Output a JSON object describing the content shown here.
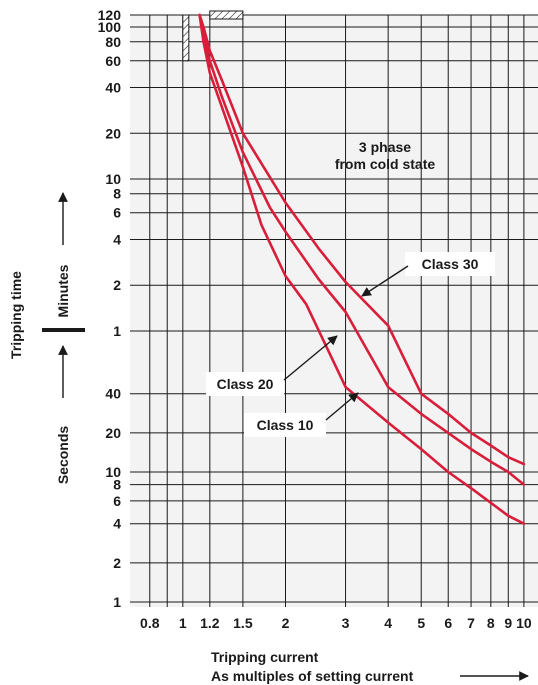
{
  "chart_data": {
    "type": "line",
    "x_scale": "log",
    "x_label": "Tripping current",
    "x_label_sub": "As multiples of setting current",
    "xlim": [
      0.7,
      11
    ],
    "x_ticks": [
      "0.8",
      "1",
      "1.2",
      "1.5",
      "2",
      "3",
      "4",
      "5",
      "6",
      "7",
      "8",
      "9",
      "10"
    ],
    "y_label": "Tripping time",
    "y_unit_upper": "Minutes",
    "y_unit_lower": "Seconds",
    "y_ticks_minutes": [
      "120",
      "100",
      "80",
      "60",
      "40",
      "20",
      "10",
      "8",
      "6",
      "4",
      "2",
      "1"
    ],
    "y_ticks_seconds": [
      "40",
      "20",
      "10",
      "8",
      "6",
      "4",
      "2",
      "1"
    ],
    "annotation": [
      "3 phase",
      "from cold state"
    ],
    "series": [
      {
        "name": "Class 10",
        "points": [
          [
            1.12,
            "120 min"
          ],
          [
            1.15,
            "80 min"
          ],
          [
            1.2,
            "50 min"
          ],
          [
            1.3,
            "30 min"
          ],
          [
            1.5,
            "12 min"
          ],
          [
            1.7,
            "5 min"
          ],
          [
            2.0,
            "2.3 min"
          ],
          [
            2.3,
            "90 s"
          ],
          [
            3.0,
            "45 s"
          ],
          [
            4.0,
            "24 s"
          ],
          [
            5.0,
            "15 s"
          ],
          [
            6.0,
            "10 s"
          ],
          [
            7.0,
            "7.5 s"
          ],
          [
            8.0,
            "5.8 s"
          ],
          [
            9.0,
            "4.6 s"
          ],
          [
            10.0,
            "4 s"
          ]
        ]
      },
      {
        "name": "Class 20",
        "points": [
          [
            1.12,
            "120 min"
          ],
          [
            1.15,
            "90 min"
          ],
          [
            1.2,
            "60 min"
          ],
          [
            1.3,
            "35 min"
          ],
          [
            1.5,
            "15 min"
          ],
          [
            1.8,
            "6.5 min"
          ],
          [
            2.0,
            "4.5 min"
          ],
          [
            2.5,
            "2.2 min"
          ],
          [
            3.0,
            "80 s"
          ],
          [
            4.0,
            "45 s"
          ],
          [
            5.0,
            "28 s"
          ],
          [
            6.0,
            "20 s"
          ],
          [
            7.0,
            "15 s"
          ],
          [
            8.0,
            "12 s"
          ],
          [
            9.0,
            "10 s"
          ],
          [
            10.0,
            "8 s"
          ]
        ]
      },
      {
        "name": "Class 30",
        "points": [
          [
            1.12,
            "120 min"
          ],
          [
            1.15,
            "100 min"
          ],
          [
            1.2,
            "70 min"
          ],
          [
            1.3,
            "45 min"
          ],
          [
            1.5,
            "20 min"
          ],
          [
            2.0,
            "7 min"
          ],
          [
            2.5,
            "3.5 min"
          ],
          [
            3.0,
            "2.1 min"
          ],
          [
            4.0,
            "65 s"
          ],
          [
            5.0,
            "40 s"
          ],
          [
            6.0,
            "28 s"
          ],
          [
            7.0,
            "20 s"
          ],
          [
            8.0,
            "16 s"
          ],
          [
            9.0,
            "13 s"
          ],
          [
            10.0,
            "11.5 s"
          ]
        ]
      }
    ],
    "colors": {
      "curve": "#d81e3a",
      "plot_bg": "#f3f3f3",
      "grid": "#1a1a1a"
    }
  }
}
